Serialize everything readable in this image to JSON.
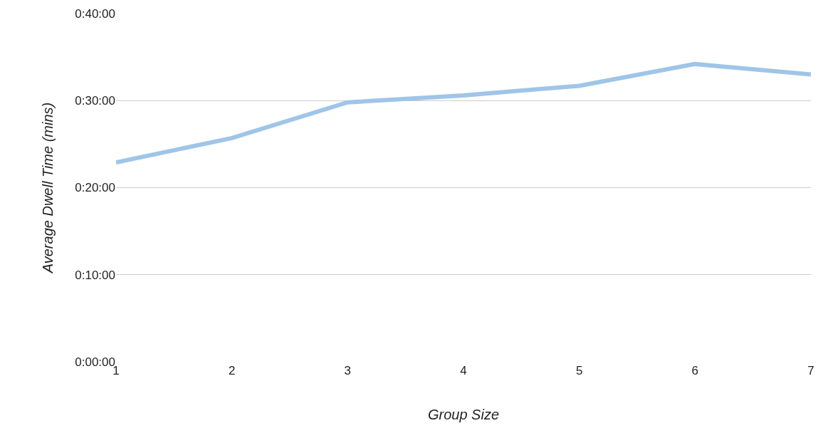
{
  "chart_data": {
    "type": "line",
    "xlabel": "Group Size",
    "ylabel": "Average Dwell Time (mins)",
    "categories": [
      "1",
      "2",
      "3",
      "4",
      "5",
      "6",
      "7"
    ],
    "series": [
      {
        "color": "#9fc5e8",
        "values": [
          22.9,
          25.7,
          29.8,
          30.6,
          31.7,
          34.2,
          33.0
        ]
      }
    ],
    "ylim": [
      0,
      40
    ],
    "yticks": [
      {
        "value": 0,
        "label": "0:00:00"
      },
      {
        "value": 10,
        "label": "0:10:00"
      },
      {
        "value": 20,
        "label": "0:20:00"
      },
      {
        "value": 30,
        "label": "0:30:00"
      },
      {
        "value": 40,
        "label": "0:40:00"
      }
    ],
    "grid": "y",
    "marker": "none",
    "line_style": "solid"
  }
}
